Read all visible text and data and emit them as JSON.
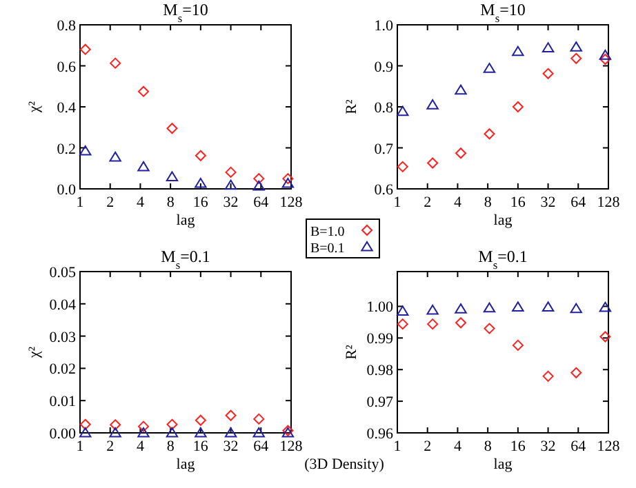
{
  "chart_data": [
    {
      "type": "scatter",
      "title": "M$_{s}$=10",
      "xlabel": "lag",
      "ylabel": "χ²",
      "log": "x",
      "xlim": [
        1,
        128
      ],
      "xticks": [
        1,
        2,
        4,
        8,
        16,
        32,
        64,
        128
      ],
      "ylim": [
        0,
        0.8
      ],
      "yticks": [
        {
          "value": 0,
          "label": "0.0"
        },
        {
          "value": 0.2,
          "label": "0.2"
        },
        {
          "value": 0.4,
          "label": "0.4"
        },
        {
          "value": 0.6,
          "label": "0.6"
        },
        {
          "value": 0.8,
          "label": "0.8"
        }
      ],
      "grid": false,
      "legend": false,
      "series": [
        {
          "color": "#ff2020",
          "marker": "diamond",
          "x": [
            1.13,
            2.25,
            4.3,
            8.3,
            16,
            32,
            61,
            119
          ],
          "values": [
            0.68,
            0.613,
            0.475,
            0.295,
            0.162,
            0.081,
            0.05,
            0.05
          ]
        },
        {
          "color": "#2020a0",
          "marker": "triangle",
          "x": [
            1.13,
            2.25,
            4.3,
            8.3,
            16,
            32,
            61,
            119
          ],
          "values": [
            0.185,
            0.155,
            0.108,
            0.059,
            0.027,
            0.018,
            0.014,
            0.027
          ]
        }
      ]
    },
    {
      "type": "scatter",
      "title": "M$_{s}$=10",
      "xlabel": "lag",
      "ylabel": "R²",
      "log": "x",
      "xlim": [
        1,
        128
      ],
      "xticks": [
        1,
        2,
        4,
        8,
        16,
        32,
        64,
        128
      ],
      "ylim": [
        0.6,
        1.0
      ],
      "yticks": [
        {
          "value": 0.6,
          "label": "0.6"
        },
        {
          "value": 0.7,
          "label": "0.7"
        },
        {
          "value": 0.8,
          "label": "0.8"
        },
        {
          "value": 0.9,
          "label": "0.9"
        },
        {
          "value": 1.0,
          "label": "1.0"
        }
      ],
      "grid": false,
      "legend": "bottom left",
      "series": [
        {
          "name": "B=1.0",
          "color": "#ff2020",
          "marker": "diamond",
          "x": [
            1.13,
            2.25,
            4.3,
            8.3,
            16,
            32,
            61,
            119
          ],
          "values": [
            0.654,
            0.663,
            0.687,
            0.734,
            0.8,
            0.881,
            0.918,
            0.916
          ]
        },
        {
          "name": "B=0.1",
          "color": "#2020a0",
          "marker": "triangle",
          "x": [
            1.13,
            2.25,
            4.3,
            8.3,
            16,
            32,
            61,
            119
          ],
          "values": [
            0.789,
            0.805,
            0.841,
            0.894,
            0.935,
            0.944,
            0.946,
            0.926
          ]
        }
      ]
    },
    {
      "type": "scatter",
      "title": "M$_{s}$=0.1",
      "xlabel": "lag",
      "ylabel": "χ²",
      "log": "x",
      "xlim": [
        1,
        128
      ],
      "xticks": [
        1,
        2,
        4,
        8,
        16,
        32,
        64,
        128
      ],
      "ylim": [
        0,
        0.05
      ],
      "yticks": [
        {
          "value": 0,
          "label": "0.00"
        },
        {
          "value": 0.01,
          "label": "0.01"
        },
        {
          "value": 0.02,
          "label": "0.02"
        },
        {
          "value": 0.03,
          "label": "0.03"
        },
        {
          "value": 0.04,
          "label": "0.04"
        },
        {
          "value": 0.05,
          "label": "0.05"
        }
      ],
      "grid": false,
      "legend": false,
      "annotations": [
        "(3D Density)"
      ],
      "series": [
        {
          "color": "#ff2020",
          "marker": "diamond",
          "x": [
            1.13,
            2.25,
            4.3,
            8.3,
            16,
            32,
            61,
            119
          ],
          "values": [
            0.0026,
            0.0025,
            0.002,
            0.0026,
            0.0039,
            0.0054,
            0.0043,
            0.0007
          ]
        },
        {
          "color": "#2020a0",
          "marker": "triangle",
          "x": [
            1.13,
            2.25,
            4.3,
            8.3,
            16,
            32,
            61,
            119
          ],
          "values": [
            0,
            0,
            0,
            0,
            0,
            0,
            0,
            0
          ]
        }
      ]
    },
    {
      "type": "scatter",
      "title": "M$_{s}$=0.1",
      "xlabel": "lag",
      "ylabel": "R²",
      "log": "x",
      "xlim": [
        1,
        128
      ],
      "xticks": [
        1,
        2,
        4,
        8,
        16,
        32,
        64,
        128
      ],
      "ylim": [
        0.96,
        1.011
      ],
      "yticks": [
        {
          "value": 0.96,
          "label": "0.96"
        },
        {
          "value": 0.97,
          "label": "0.97"
        },
        {
          "value": 0.98,
          "label": "0.98"
        },
        {
          "value": 0.99,
          "label": "0.99"
        },
        {
          "value": 1.0,
          "label": "1.00"
        }
      ],
      "grid": false,
      "legend": false,
      "series": [
        {
          "color": "#ff2020",
          "marker": "diamond",
          "x": [
            1.13,
            2.25,
            4.3,
            8.3,
            16,
            32,
            61,
            119
          ],
          "values": [
            0.9944,
            0.9944,
            0.9948,
            0.993,
            0.9877,
            0.9779,
            0.979,
            0.9904
          ]
        },
        {
          "color": "#2020a0",
          "marker": "triangle",
          "x": [
            1.13,
            2.25,
            4.3,
            8.3,
            16,
            32,
            61,
            119
          ],
          "values": [
            0.9985,
            0.9988,
            0.9992,
            0.9995,
            0.9998,
            0.9998,
            0.9993,
            0.9997
          ]
        }
      ]
    }
  ]
}
